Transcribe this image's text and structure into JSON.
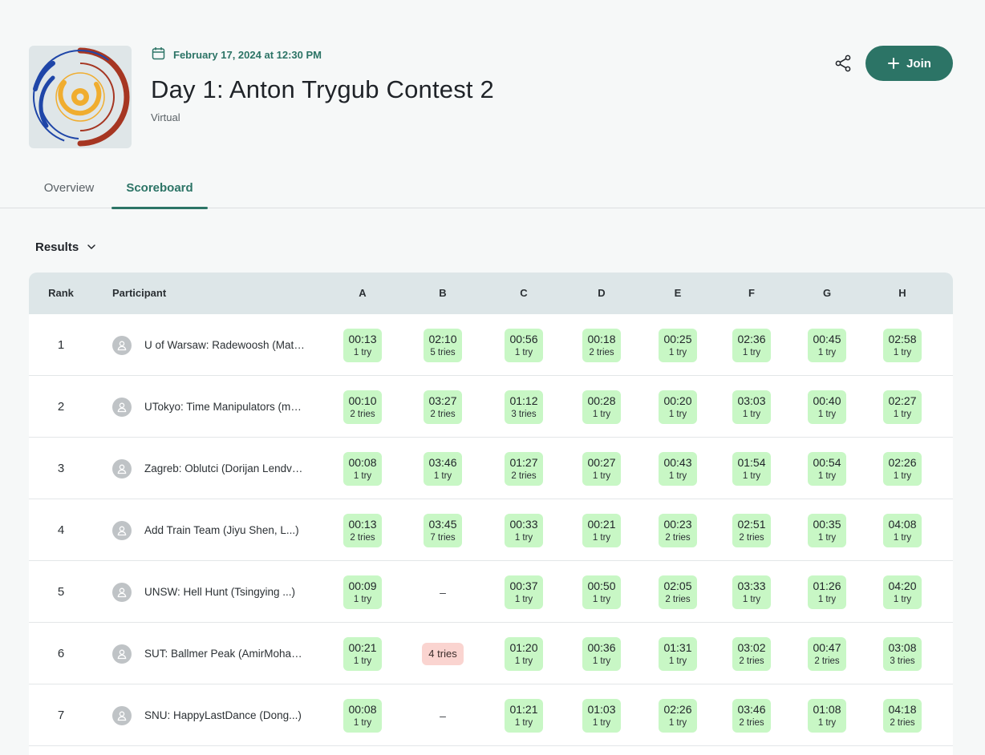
{
  "header": {
    "date": "February 17, 2024 at 12:30 PM",
    "title": "Day 1: Anton Trygub Contest 2",
    "location": "Virtual",
    "join_label": "Join"
  },
  "tabs": [
    {
      "label": "Overview"
    },
    {
      "label": "Scoreboard"
    }
  ],
  "results_label": "Results",
  "table": {
    "headers": {
      "rank": "Rank",
      "participant": "Participant"
    },
    "problems": [
      "A",
      "B",
      "C",
      "D",
      "E",
      "F",
      "G",
      "H"
    ],
    "rows": [
      {
        "rank": "1",
        "participant": "U of Warsaw: Radewoosh (Mateusz Radecki, Tomasz Nowak, Kamil Dębowski)",
        "cells": [
          {
            "time": "00:13",
            "tries": "1 try"
          },
          {
            "time": "02:10",
            "tries": "5 tries"
          },
          {
            "time": "00:56",
            "tries": "1 try"
          },
          {
            "time": "00:18",
            "tries": "2 tries"
          },
          {
            "time": "00:25",
            "tries": "1 try"
          },
          {
            "time": "02:36",
            "tries": "1 try"
          },
          {
            "time": "00:45",
            "tries": "1 try"
          },
          {
            "time": "02:58",
            "tries": "1 try"
          }
        ]
      },
      {
        "rank": "2",
        "participant": "UTokyo: Time Manipulators (members)",
        "cells": [
          {
            "time": "00:10",
            "tries": "2 tries"
          },
          {
            "time": "03:27",
            "tries": "2 tries"
          },
          {
            "time": "01:12",
            "tries": "3 tries"
          },
          {
            "time": "00:28",
            "tries": "1 try"
          },
          {
            "time": "00:20",
            "tries": "1 try"
          },
          {
            "time": "03:03",
            "tries": "1 try"
          },
          {
            "time": "00:40",
            "tries": "1 try"
          },
          {
            "time": "02:27",
            "tries": "1 try"
          }
        ]
      },
      {
        "rank": "3",
        "participant": "Zagreb: Oblutci (Dorijan Lendvaj, members)",
        "cells": [
          {
            "time": "00:08",
            "tries": "1 try"
          },
          {
            "time": "03:46",
            "tries": "1 try"
          },
          {
            "time": "01:27",
            "tries": "2 tries"
          },
          {
            "time": "00:27",
            "tries": "1 try"
          },
          {
            "time": "00:43",
            "tries": "1 try"
          },
          {
            "time": "01:54",
            "tries": "1 try"
          },
          {
            "time": "00:54",
            "tries": "1 try"
          },
          {
            "time": "02:26",
            "tries": "1 try"
          }
        ]
      },
      {
        "rank": "4",
        "participant": "Add Train Team (Jiyu Shen, L...)",
        "cells": [
          {
            "time": "00:13",
            "tries": "2 tries"
          },
          {
            "time": "03:45",
            "tries": "7 tries"
          },
          {
            "time": "00:33",
            "tries": "1 try"
          },
          {
            "time": "00:21",
            "tries": "1 try"
          },
          {
            "time": "00:23",
            "tries": "2 tries"
          },
          {
            "time": "02:51",
            "tries": "2 tries"
          },
          {
            "time": "00:35",
            "tries": "1 try"
          },
          {
            "time": "04:08",
            "tries": "1 try"
          }
        ]
      },
      {
        "rank": "5",
        "participant": "UNSW: Hell Hunt (Tsingying ...)",
        "cells": [
          {
            "time": "00:09",
            "tries": "1 try"
          },
          {
            "empty": "–"
          },
          {
            "time": "00:37",
            "tries": "1 try"
          },
          {
            "time": "00:50",
            "tries": "1 try"
          },
          {
            "time": "02:05",
            "tries": "2 tries"
          },
          {
            "time": "03:33",
            "tries": "1 try"
          },
          {
            "time": "01:26",
            "tries": "1 try"
          },
          {
            "time": "04:20",
            "tries": "1 try"
          }
        ]
      },
      {
        "rank": "6",
        "participant": "SUT: Ballmer Peak (AmirMohammad ...)",
        "cells": [
          {
            "time": "00:21",
            "tries": "1 try"
          },
          {
            "fail": "4 tries"
          },
          {
            "time": "01:20",
            "tries": "1 try"
          },
          {
            "time": "00:36",
            "tries": "1 try"
          },
          {
            "time": "01:31",
            "tries": "1 try"
          },
          {
            "time": "03:02",
            "tries": "2 tries"
          },
          {
            "time": "00:47",
            "tries": "2 tries"
          },
          {
            "time": "03:08",
            "tries": "3 tries"
          }
        ]
      },
      {
        "rank": "7",
        "participant": "SNU: HappyLastDance (Dong...)",
        "cells": [
          {
            "time": "00:08",
            "tries": "1 try"
          },
          {
            "empty": "–"
          },
          {
            "time": "01:21",
            "tries": "1 try"
          },
          {
            "time": "01:03",
            "tries": "1 try"
          },
          {
            "time": "02:26",
            "tries": "1 try"
          },
          {
            "time": "03:46",
            "tries": "2 tries"
          },
          {
            "time": "01:08",
            "tries": "1 try"
          },
          {
            "time": "04:18",
            "tries": "2 tries"
          }
        ]
      }
    ]
  },
  "colors": {
    "accent": "#2c7466",
    "solved": "#c8f7c5",
    "failed": "#fad4d0",
    "header_bg": "#dde6e8"
  },
  "icons": {
    "date": "calendar-icon",
    "share": "share-icon",
    "join": "plus-icon",
    "results": "chevron-down-icon",
    "avatar": "user-icon"
  }
}
